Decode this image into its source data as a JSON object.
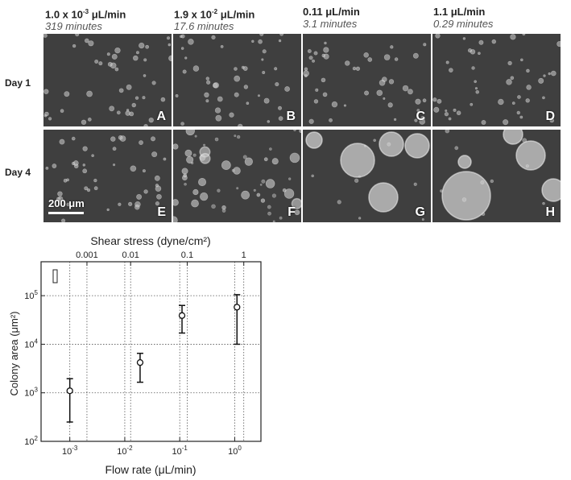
{
  "columns": [
    {
      "rate_main": "1.0 x 10",
      "rate_exp": "-3",
      "rate_unit": " μL/min",
      "time": "319 minutes"
    },
    {
      "rate_main": "1.9 x 10",
      "rate_exp": "-2",
      "rate_unit": " μL/min",
      "time": "17.6 minutes"
    },
    {
      "rate_main": "0.11",
      "rate_exp": "",
      "rate_unit": " μL/min",
      "time": "3.1 minutes"
    },
    {
      "rate_main": "1.1",
      "rate_exp": "",
      "rate_unit": " μL/min",
      "time": "0.29 minutes"
    }
  ],
  "rows": [
    {
      "label": "Day 1"
    },
    {
      "label": "Day 4"
    }
  ],
  "panels": [
    {
      "letter": "A",
      "day": 1,
      "rate_index": 0,
      "colony_size": "small"
    },
    {
      "letter": "B",
      "day": 1,
      "rate_index": 1,
      "colony_size": "small"
    },
    {
      "letter": "C",
      "day": 1,
      "rate_index": 2,
      "colony_size": "small"
    },
    {
      "letter": "D",
      "day": 1,
      "rate_index": 3,
      "colony_size": "small"
    },
    {
      "letter": "E",
      "day": 4,
      "rate_index": 0,
      "colony_size": "small"
    },
    {
      "letter": "F",
      "day": 4,
      "rate_index": 1,
      "colony_size": "medium"
    },
    {
      "letter": "G",
      "day": 4,
      "rate_index": 2,
      "colony_size": "large"
    },
    {
      "letter": "H",
      "day": 4,
      "rate_index": 3,
      "colony_size": "large"
    }
  ],
  "scale_bar": {
    "label": "200 μm"
  },
  "colors": {
    "micrograph_bg": "#3f3f3f",
    "colony": "#cfcfcf",
    "panel_text": "#ffffff"
  },
  "chart_data": {
    "type": "scatter",
    "xscale": "log",
    "yscale": "log",
    "xlim": [
      0.0003,
      3
    ],
    "ylim": [
      100,
      500000
    ],
    "xlabel": "Flow rate (μL/min)",
    "ylabel": "Colony area (μm²)",
    "x2label": "Shear stress (dyne/cm²)",
    "x2ticks": [
      "0.001",
      "0.01",
      "0.1",
      "1"
    ],
    "yticks": [
      100,
      1000,
      10000,
      100000
    ],
    "xticks": [
      0.001,
      0.01,
      0.1,
      1
    ],
    "grid": true,
    "points": [
      {
        "x": 0.001,
        "y": 1100,
        "ylow": 250,
        "yhigh": 1950
      },
      {
        "x": 0.019,
        "y": 4200,
        "ylow": 1650,
        "yhigh": 6500
      },
      {
        "x": 0.11,
        "y": 39000,
        "ylow": 17000,
        "yhigh": 63000
      },
      {
        "x": 1.1,
        "y": 58000,
        "ylow": 10000,
        "yhigh": 105000
      }
    ]
  }
}
